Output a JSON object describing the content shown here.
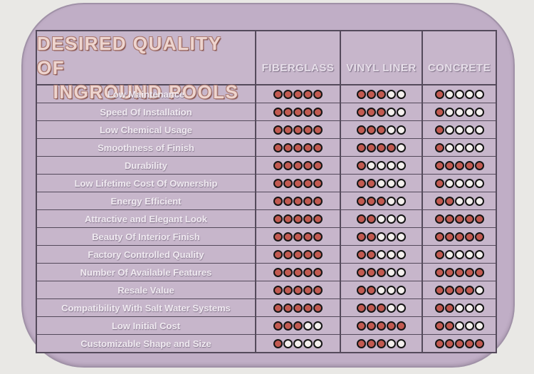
{
  "header": {
    "title_line1": "DESIRED QUALITY OF",
    "title_line2": "INGROUND POOLS"
  },
  "chart_data": {
    "type": "table",
    "title": "Desired Quality of Inground Pools",
    "columns": [
      "FIBERGLASS",
      "VINYL LINER",
      "CONCRETE"
    ],
    "rating_max": 5,
    "rows": [
      {
        "label": "Low Maintenance",
        "ratings": [
          5,
          3,
          1
        ]
      },
      {
        "label": "Speed Of Installation",
        "ratings": [
          5,
          3,
          1
        ]
      },
      {
        "label": "Low Chemical Usage",
        "ratings": [
          5,
          3,
          1
        ]
      },
      {
        "label": "Smoothness of Finish",
        "ratings": [
          5,
          4,
          1
        ]
      },
      {
        "label": "Durability",
        "ratings": [
          5,
          1,
          5
        ]
      },
      {
        "label": "Low Lifetime Cost Of Ownership",
        "ratings": [
          5,
          2,
          1
        ]
      },
      {
        "label": "Energy Efficient",
        "ratings": [
          5,
          3,
          2
        ]
      },
      {
        "label": "Attractive and Elegant Look",
        "ratings": [
          5,
          2,
          5
        ]
      },
      {
        "label": "Beauty Of Interior Finish",
        "ratings": [
          5,
          2,
          5
        ]
      },
      {
        "label": "Factory Controlled Quality",
        "ratings": [
          5,
          2,
          1
        ]
      },
      {
        "label": "Number Of Available Features",
        "ratings": [
          5,
          3,
          5
        ]
      },
      {
        "label": "Resale Value",
        "ratings": [
          5,
          2,
          4
        ]
      },
      {
        "label": "Compatibility With Salt Water Systems",
        "ratings": [
          5,
          3,
          2
        ]
      },
      {
        "label": "Low Initial Cost",
        "ratings": [
          3,
          5,
          2
        ]
      },
      {
        "label": "Customizable Shape and Size",
        "ratings": [
          1,
          3,
          5
        ]
      }
    ]
  },
  "colors": {
    "panel_bg": "#c0aec6",
    "cell_bg": "#c7b6cb",
    "grid_border": "#544a5b",
    "title_text": "#eed5cf",
    "header_text": "#e6dee9",
    "label_text": "#f0eaf1",
    "dot_filled": "#c25a51",
    "dot_empty": "#f3efed",
    "dot_border": "#151515"
  }
}
